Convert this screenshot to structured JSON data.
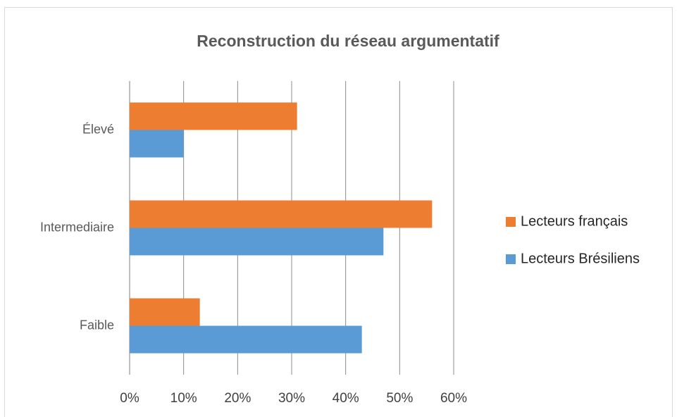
{
  "chart_data": {
    "type": "hbar",
    "title": "Reconstruction du réseau argumentatif",
    "categories": [
      "Élevé",
      "Intermediaire",
      "Faible"
    ],
    "series": [
      {
        "name": "Lecteurs français",
        "color": "#ed7d31",
        "values": [
          31,
          56,
          13
        ]
      },
      {
        "name": "Lecteurs Brésiliens",
        "color": "#5b9bd5",
        "values": [
          10,
          47,
          43
        ]
      }
    ],
    "xlim": [
      0,
      60
    ],
    "xticks": [
      {
        "value": 0,
        "label": "0%"
      },
      {
        "value": 10,
        "label": "10%"
      },
      {
        "value": 20,
        "label": "20%"
      },
      {
        "value": 30,
        "label": "30%"
      },
      {
        "value": 40,
        "label": "40%"
      },
      {
        "value": 50,
        "label": "50%"
      },
      {
        "value": 60,
        "label": "60%"
      }
    ],
    "grid": true,
    "legend": "right"
  }
}
